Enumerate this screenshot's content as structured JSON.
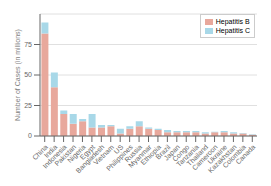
{
  "chart_data": {
    "type": "bar",
    "stacked": true,
    "categories": [
      "China",
      "India",
      "Indonesia",
      "Pakistan",
      "Nigeria",
      "Egypt",
      "Bangladesh",
      "Vietnam",
      "US",
      "Philippines",
      "Russia",
      "Myanmar",
      "Ethiopia",
      "Brazil",
      "Japan",
      "Congo",
      "Tanzania",
      "Thailand",
      "Cameroon",
      "Ukraine",
      "Kazakhstan",
      "Colombia",
      "Canada"
    ],
    "series": [
      {
        "name": "Hepatitis B",
        "color": "#e8a89c",
        "values": [
          84,
          40,
          18,
          10,
          12,
          7,
          7,
          8,
          2,
          6,
          8,
          6,
          5,
          3,
          3,
          3,
          3,
          2,
          3,
          3,
          2,
          2,
          1
        ]
      },
      {
        "name": "Hepatitis C",
        "color": "#a8d8e8",
        "values": [
          9,
          12,
          3,
          8,
          2,
          11,
          2,
          1,
          4,
          2,
          4,
          1,
          1,
          2,
          1,
          1,
          1,
          1,
          0.5,
          1,
          1,
          0.5,
          0.5
        ]
      }
    ],
    "ylabel": "Number of Cases (in millions)",
    "ylim": [
      0,
      100
    ],
    "yticks": [
      0,
      25,
      50,
      75
    ],
    "grid": true,
    "legend": "upper right"
  }
}
